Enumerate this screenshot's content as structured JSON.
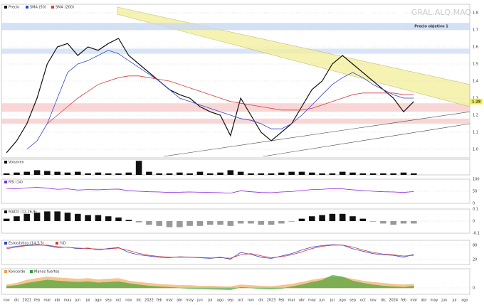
{
  "chart_data": [
    {
      "type": "line",
      "title": "GRAL.ALQ.MAQ",
      "categories": [
        "nov",
        "dic",
        "2021",
        "feb",
        "mar",
        "abr",
        "may",
        "jun",
        "jul",
        "ago",
        "sep",
        "oct",
        "nov",
        "dic",
        "2022",
        "feb",
        "mar",
        "abr",
        "may",
        "jun",
        "jul",
        "ago",
        "sep",
        "oct",
        "nov",
        "dic",
        "2023",
        "feb",
        "mar",
        "abr",
        "may",
        "jun",
        "jul",
        "ago",
        "sep",
        "oct",
        "nov",
        "dic",
        "2024",
        "feb",
        "mar",
        "abr",
        "may",
        "jun",
        "jul",
        "ago"
      ],
      "series": [
        {
          "name": "Precio",
          "color": "#111111",
          "values": [
            0.98,
            1.05,
            1.15,
            1.3,
            1.5,
            1.6,
            1.62,
            1.55,
            1.6,
            1.58,
            1.62,
            1.65,
            1.55,
            1.5,
            1.45,
            1.4,
            1.35,
            1.32,
            1.3,
            1.25,
            1.22,
            1.2,
            1.08,
            1.3,
            1.2,
            1.1,
            1.05,
            1.1,
            1.15,
            1.25,
            1.35,
            1.4,
            1.5,
            1.55,
            1.5,
            1.45,
            1.4,
            1.35,
            1.3,
            1.22,
            1.28,
            null,
            null,
            null,
            null,
            null
          ]
        },
        {
          "name": "SMA (50)",
          "color": "#3344cc",
          "values": [
            null,
            null,
            1.0,
            1.05,
            1.15,
            1.3,
            1.45,
            1.5,
            1.52,
            1.55,
            1.58,
            1.56,
            1.52,
            1.48,
            1.44,
            1.4,
            1.35,
            1.3,
            1.28,
            1.26,
            1.24,
            1.22,
            1.2,
            1.18,
            1.17,
            1.15,
            1.12,
            1.12,
            1.15,
            1.2,
            1.26,
            1.32,
            1.38,
            1.42,
            1.45,
            1.42,
            1.38,
            1.35,
            1.32,
            1.3,
            1.3,
            null,
            null,
            null,
            null,
            null
          ]
        },
        {
          "name": "SMA (200)",
          "color": "#d23c3c",
          "values": [
            null,
            null,
            null,
            null,
            1.15,
            1.2,
            1.25,
            1.3,
            1.34,
            1.38,
            1.4,
            1.42,
            1.43,
            1.43,
            1.42,
            1.41,
            1.4,
            1.38,
            1.36,
            1.34,
            1.32,
            1.3,
            1.28,
            1.27,
            1.26,
            1.25,
            1.24,
            1.23,
            1.23,
            1.23,
            1.24,
            1.26,
            1.28,
            1.3,
            1.32,
            1.33,
            1.33,
            1.33,
            1.33,
            1.32,
            1.32,
            null,
            null,
            null,
            null,
            null
          ]
        }
      ],
      "ylim": [
        0.95,
        1.85
      ],
      "yticks": [
        {
          "value": 1,
          "label": "1.0"
        },
        1.1,
        1.2,
        1.3,
        1.4,
        1.5,
        1.6,
        1.7,
        1.8
      ],
      "target": {
        "value": 1.72,
        "label": "Precio objetivo 1"
      },
      "current_price": {
        "value": 1.28,
        "label": "1.28"
      },
      "grid": true
    },
    {
      "type": "bar",
      "series": [
        {
          "name": "Volumen",
          "color": "#111111",
          "values": [
            0.1,
            0.15,
            0.2,
            0.3,
            0.25,
            0.2,
            0.15,
            0.2,
            0.1,
            0.15,
            0.1,
            0.1,
            0.15,
            0.9,
            0.2,
            0.1,
            0.1,
            0.15,
            0.1,
            0.2,
            0.1,
            0.15,
            0.3,
            0.2,
            0.1,
            0.1,
            0.1,
            0.15,
            0.2,
            0.2,
            0.15,
            0.1,
            0.1,
            0.2,
            0.15,
            0.1,
            0.1,
            0.1,
            0.1,
            0.15,
            0.1,
            null,
            null,
            null,
            null,
            null
          ]
        }
      ],
      "ylim": [
        0,
        1
      ],
      "yticks": [],
      "grid": false
    },
    {
      "type": "line",
      "series": [
        {
          "name": "RSI (14)",
          "color": "#8a2be2",
          "values": [
            62,
            60,
            64,
            66,
            63,
            58,
            60,
            55,
            57,
            56,
            58,
            59,
            52,
            50,
            48,
            47,
            45,
            46,
            47,
            46,
            45,
            44,
            42,
            52,
            48,
            45,
            44,
            47,
            49,
            53,
            57,
            58,
            61,
            60,
            56,
            53,
            50,
            48,
            47,
            45,
            49,
            null,
            null,
            null,
            null,
            null
          ]
        }
      ],
      "ylim": [
        0,
        100
      ],
      "yticks": [
        0,
        50,
        100
      ],
      "grid": true
    },
    {
      "type": "bar",
      "series": [
        {
          "name": "MACD (12,26,9)",
          "color": "#111111",
          "values": [
            0.02,
            0.04,
            0.06,
            0.07,
            0.08,
            0.08,
            0.07,
            0.06,
            0.05,
            0.05,
            0.04,
            0.03,
            0.01,
            -0.01,
            -0.03,
            -0.04,
            -0.05,
            -0.05,
            -0.04,
            -0.04,
            -0.03,
            -0.03,
            -0.04,
            -0.02,
            -0.02,
            -0.03,
            -0.03,
            -0.02,
            0.0,
            0.02,
            0.04,
            0.05,
            0.06,
            0.06,
            0.04,
            0.02,
            0.0,
            -0.02,
            -0.03,
            -0.02,
            -0.02,
            null,
            null,
            null,
            null,
            null
          ]
        }
      ],
      "ylim": [
        -0.1,
        0.1
      ],
      "yticks": [
        -0.1,
        0,
        0.1
      ],
      "grid": true
    },
    {
      "type": "line",
      "series": [
        {
          "name": "Estocástico (14,3,3)",
          "color": "#3344cc",
          "values": [
            70,
            75,
            80,
            82,
            78,
            70,
            72,
            65,
            68,
            60,
            66,
            70,
            50,
            40,
            35,
            30,
            28,
            32,
            30,
            28,
            25,
            30,
            22,
            50,
            42,
            30,
            25,
            35,
            45,
            60,
            72,
            78,
            82,
            80,
            65,
            55,
            45,
            40,
            38,
            30,
            42,
            null,
            null,
            null,
            null,
            null
          ]
        },
        {
          "name": "%D",
          "color": "#d23c3c",
          "values": [
            65,
            72,
            78,
            80,
            80,
            74,
            71,
            68,
            66,
            64,
            64,
            68,
            58,
            46,
            38,
            33,
            30,
            30,
            30,
            29,
            27,
            28,
            26,
            40,
            45,
            36,
            28,
            32,
            40,
            52,
            66,
            75,
            80,
            80,
            72,
            60,
            50,
            43,
            40,
            35,
            38,
            null,
            null,
            null,
            null,
            null
          ]
        }
      ],
      "ylim": [
        0,
        100
      ],
      "yticks": [
        20,
        80
      ],
      "grid": true
    },
    {
      "type": "area",
      "series": [
        {
          "name": "Koncorde",
          "color": "#f0a040",
          "values": [
            10,
            15,
            25,
            30,
            35,
            32,
            30,
            28,
            30,
            26,
            28,
            30,
            22,
            18,
            15,
            12,
            10,
            8,
            8,
            6,
            6,
            5,
            4,
            10,
            8,
            6,
            5,
            8,
            12,
            18,
            25,
            30,
            35,
            34,
            28,
            22,
            18,
            15,
            12,
            10,
            12,
            null,
            null,
            null,
            null,
            null
          ]
        },
        {
          "name": "Manos fuertes",
          "color": "#2ea02e",
          "values": [
            5,
            8,
            15,
            20,
            25,
            22,
            20,
            18,
            20,
            16,
            18,
            20,
            14,
            10,
            6,
            4,
            2,
            0,
            -2,
            -3,
            -4,
            -5,
            -6,
            2,
            0,
            -3,
            -4,
            -2,
            4,
            10,
            18,
            24,
            40,
            35,
            22,
            15,
            10,
            6,
            4,
            2,
            6,
            null,
            null,
            null,
            null,
            null
          ]
        }
      ],
      "ylim": [
        -20,
        60
      ],
      "yticks": [
        0
      ],
      "grid": true
    }
  ]
}
